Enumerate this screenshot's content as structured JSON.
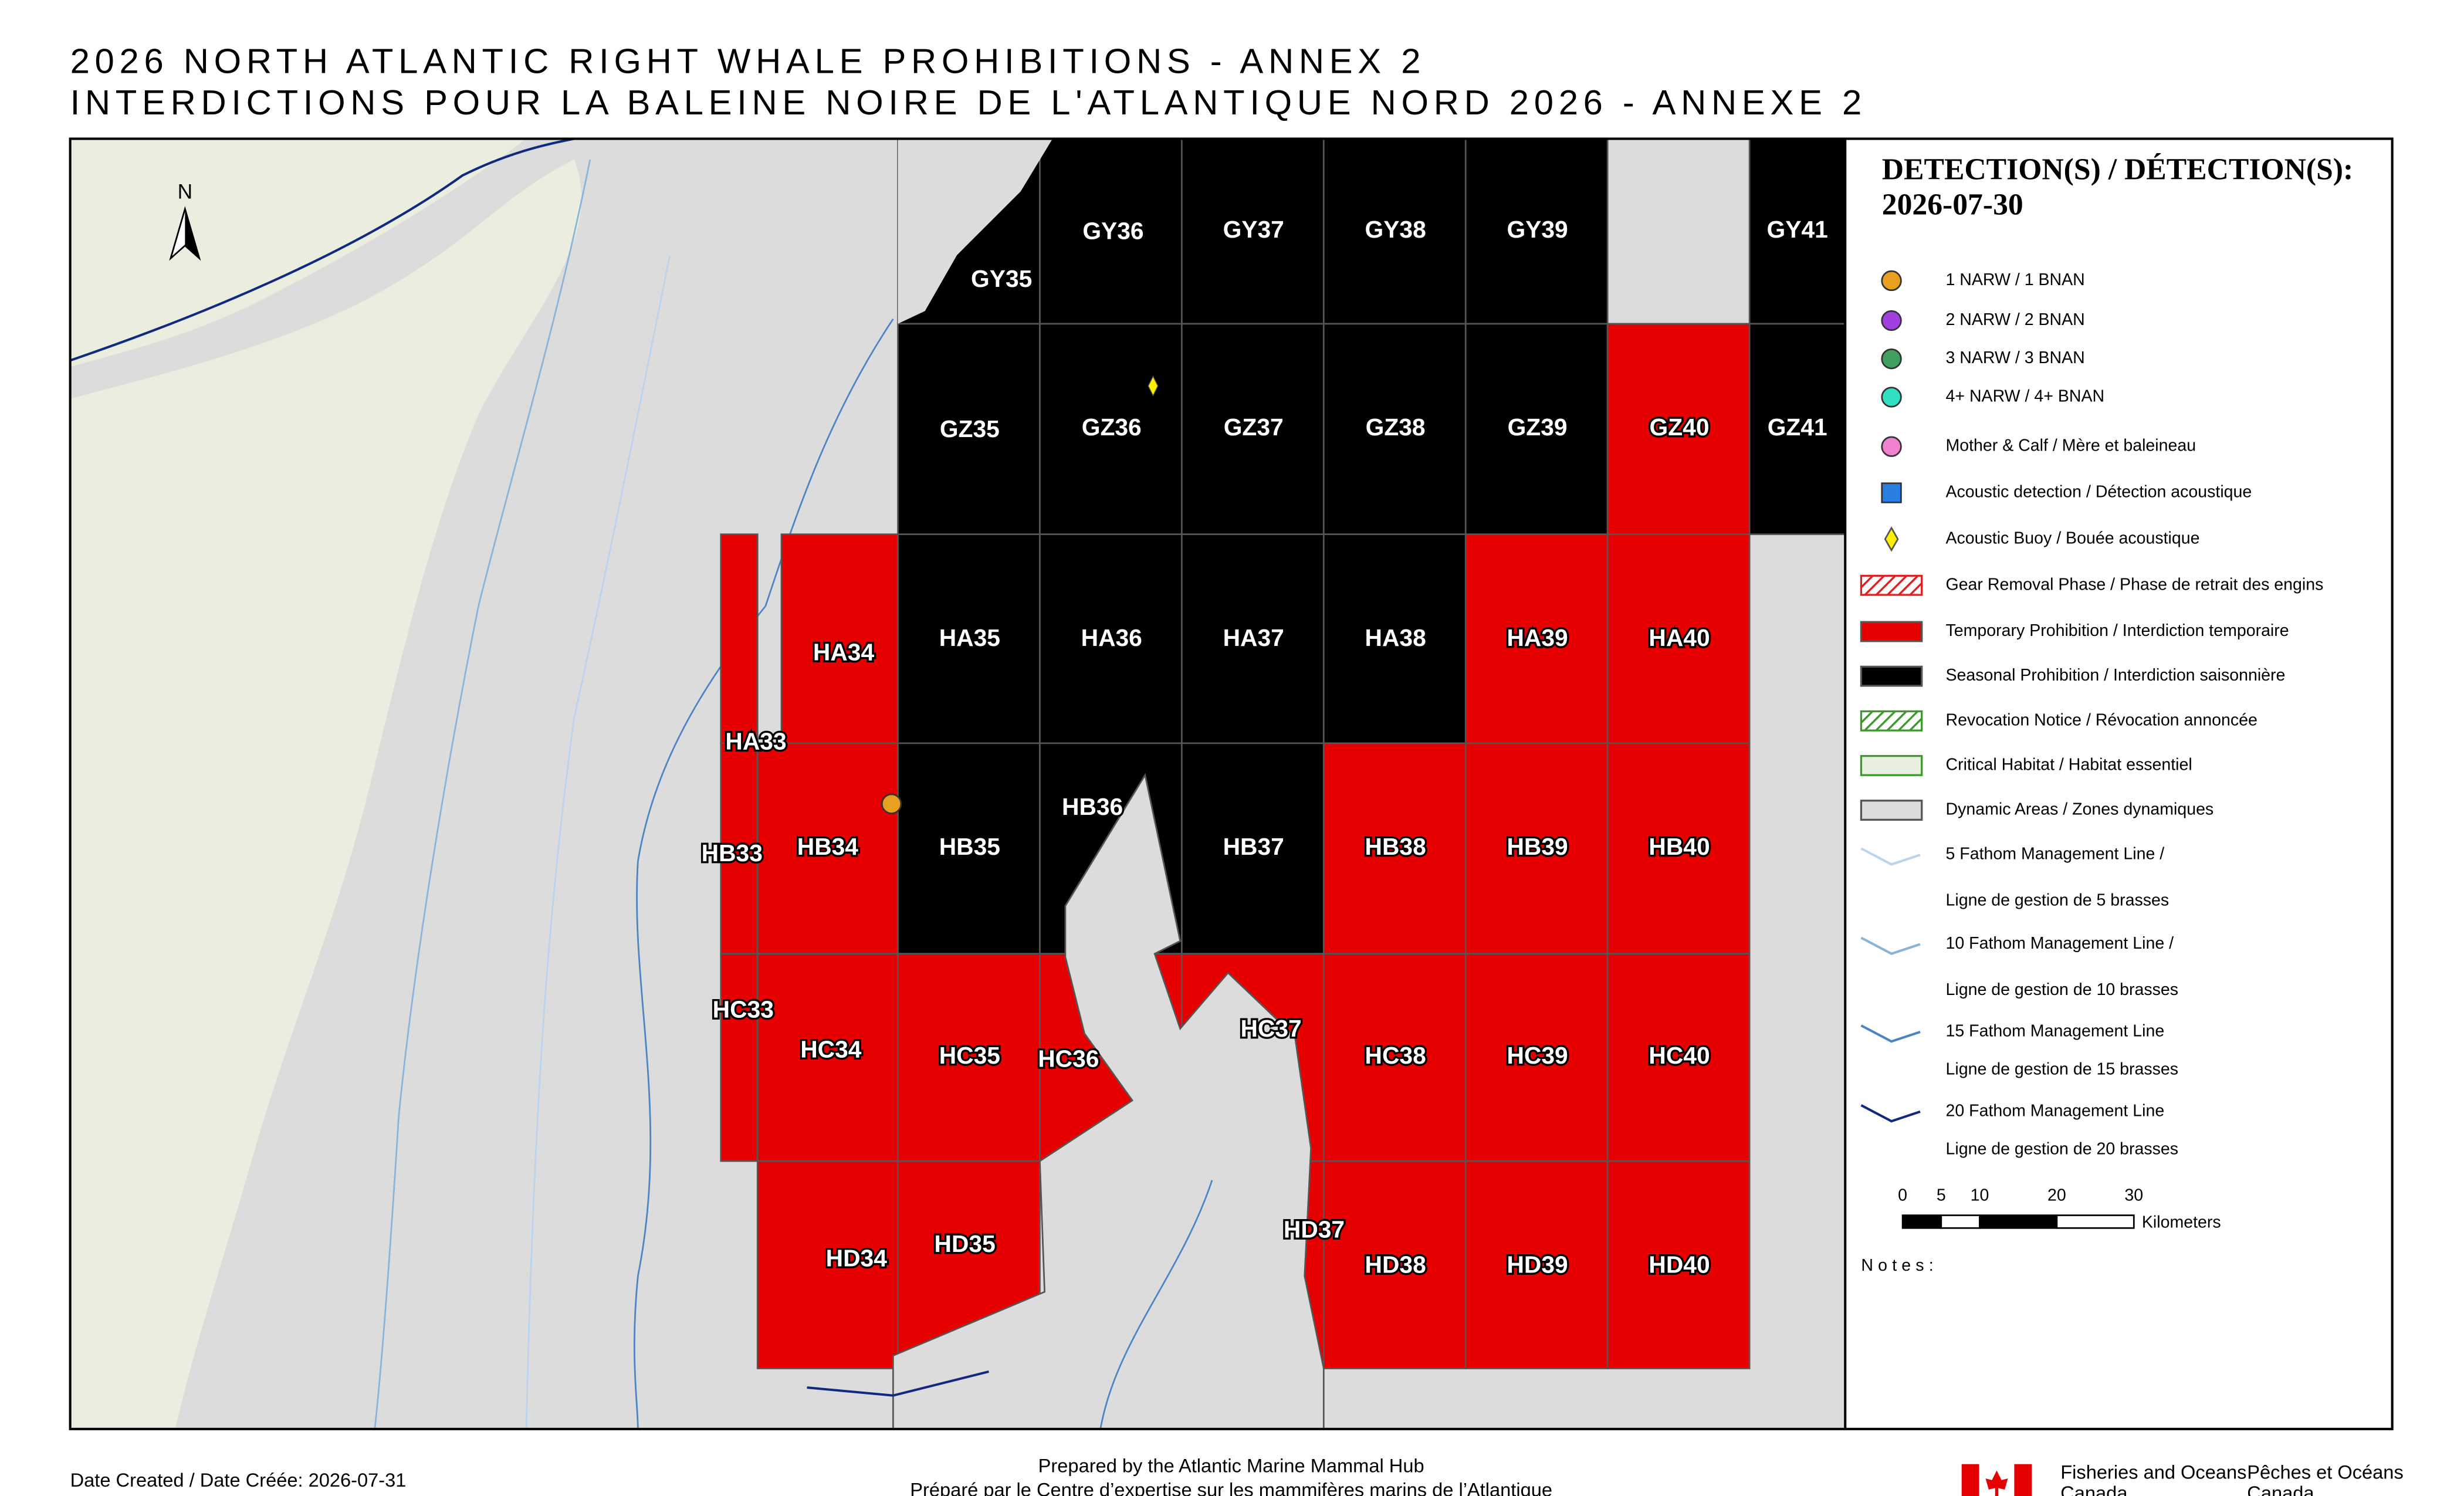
{
  "title": [
    "2026 NORTH ATLANTIC RIGHT WHALE PROHIBITIONS - ANNEX 2",
    "INTERDICTIONS POUR LA BALEINE NOIRE DE L'ATLANTIQUE NORD 2026 - ANNEXE 2"
  ],
  "map": {
    "north": "N",
    "cells": [
      {
        "label": "GY35",
        "color": "#000000"
      },
      {
        "label": "GY36",
        "color": "#000000"
      },
      {
        "label": "GY37",
        "color": "#000000"
      },
      {
        "label": "GY38",
        "color": "#000000"
      },
      {
        "label": "GY39",
        "color": "#000000"
      },
      {
        "label": "GY41",
        "color": "#000000"
      },
      {
        "label": "GZ35",
        "color": "#000000"
      },
      {
        "label": "GZ36",
        "color": "#000000"
      },
      {
        "label": "GZ37",
        "color": "#000000"
      },
      {
        "label": "GZ38",
        "color": "#000000"
      },
      {
        "label": "GZ39",
        "color": "#000000"
      },
      {
        "label": "GZ40",
        "color": "#e60000"
      },
      {
        "label": "GZ41",
        "color": "#000000"
      },
      {
        "label": "HA33",
        "color": "#e60000"
      },
      {
        "label": "HA34",
        "color": "#e60000"
      },
      {
        "label": "HA35",
        "color": "#000000"
      },
      {
        "label": "HA36",
        "color": "#000000"
      },
      {
        "label": "HA37",
        "color": "#000000"
      },
      {
        "label": "HA38",
        "color": "#000000"
      },
      {
        "label": "HA39",
        "color": "#e60000"
      },
      {
        "label": "HA40",
        "color": "#e60000"
      },
      {
        "label": "HB33",
        "color": "#e60000"
      },
      {
        "label": "HB34",
        "color": "#e60000"
      },
      {
        "label": "HB35",
        "color": "#000000"
      },
      {
        "label": "HB36",
        "color": "#000000"
      },
      {
        "label": "HB37",
        "color": "#000000"
      },
      {
        "label": "HB38",
        "color": "#e60000"
      },
      {
        "label": "HB39",
        "color": "#e60000"
      },
      {
        "label": "HB40",
        "color": "#e60000"
      },
      {
        "label": "HC33",
        "color": "#e60000"
      },
      {
        "label": "HC34",
        "color": "#e60000"
      },
      {
        "label": "HC35",
        "color": "#e60000"
      },
      {
        "label": "HC36",
        "color": "#e60000"
      },
      {
        "label": "HC37",
        "color": "#e60000"
      },
      {
        "label": "HC38",
        "color": "#e60000"
      },
      {
        "label": "HC39",
        "color": "#e60000"
      },
      {
        "label": "HC40",
        "color": "#e60000"
      },
      {
        "label": "HD34",
        "color": "#e60000"
      },
      {
        "label": "HD35",
        "color": "#e60000"
      },
      {
        "label": "HD37",
        "color": "#e60000"
      },
      {
        "label": "HD38",
        "color": "#e60000"
      },
      {
        "label": "HD39",
        "color": "#e60000"
      },
      {
        "label": "HD40",
        "color": "#e60000"
      }
    ]
  },
  "legend": {
    "title": "DETECTION(S) / DÉTECTION(S):",
    "date": "2026-07-30",
    "items": [
      {
        "label": "1 NARW / 1 BNAN",
        "color": "#e8a020"
      },
      {
        "label": "2 NARW / 2 BNAN",
        "color": "#a040e0"
      },
      {
        "label": "3 NARW / 3 BNAN",
        "color": "#40a060"
      },
      {
        "label": "4+ NARW / 4+ BNAN",
        "color": "#30e0c0"
      },
      {
        "label": "Mother & Calf / Mère et baleineau",
        "color": "#f080d0"
      },
      {
        "label": "Acoustic detection / Détection acoustique",
        "color": "#2a7de1"
      },
      {
        "label": "Acoustic Buoy / Bouée acoustique",
        "color": "#ffee00"
      },
      {
        "label": "Gear Removal Phase / Phase de retrait des engins",
        "color": "#e02020"
      },
      {
        "label": "Temporary Prohibition / Interdiction temporaire",
        "color": "#e60000"
      },
      {
        "label": "Seasonal Prohibition / Interdiction saisonnière",
        "color": "#000000"
      },
      {
        "label": "Revocation Notice / Révocation annoncée",
        "color": "#3a9a2a"
      },
      {
        "label": "Critical Habitat / Habitat essentiel",
        "color": "#3a9a2a"
      },
      {
        "label": "Dynamic Areas / Zones dynamiques",
        "color": "#dcdcdc"
      },
      {
        "label": "5 Fathom Management Line /",
        "label2": "Ligne de gestion de 5 brasses",
        "color": "#b8d4f0"
      },
      {
        "label": "10 Fathom Management Line /",
        "label2": "Ligne de gestion de 10 brasses",
        "color": "#88b4dc"
      },
      {
        "label": "15 Fathom Management Line",
        "label2": "Ligne de gestion de 15 brasses",
        "color": "#4a84c4"
      },
      {
        "label": "20 Fathom Management Line",
        "label2": "Ligne de gestion de 20 brasses",
        "color": "#102a80"
      }
    ]
  },
  "scale": {
    "ticks": [
      0,
      5,
      10,
      20,
      30
    ],
    "unit": "Kilometers"
  },
  "notes": "Notes:",
  "footer": {
    "date_created": "Date Created / Date Créée: 2026-07-31",
    "prepared": [
      "Prepared by the Atlantic Marine Mammal Hub",
      "Préparé par le Centre d’expertise sur les mammifères marins de l’Atlantique"
    ],
    "dfo_en": [
      "Fisheries and Oceans",
      "Canada"
    ],
    "dfo_fr": [
      "Pêches et Océans",
      "Canada"
    ]
  }
}
